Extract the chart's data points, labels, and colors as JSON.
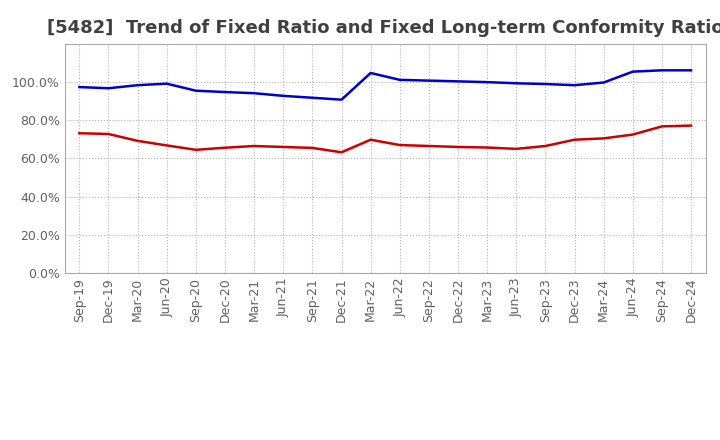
{
  "title": "[5482]  Trend of Fixed Ratio and Fixed Long-term Conformity Ratio",
  "title_color": "#404040",
  "background_color": "#ffffff",
  "plot_background_color": "#ffffff",
  "grid_color": "#aaaaaa",
  "ylim": [
    0.0,
    1.2
  ],
  "x_labels": [
    "Sep-19",
    "Dec-19",
    "Mar-20",
    "Jun-20",
    "Sep-20",
    "Dec-20",
    "Mar-21",
    "Jun-21",
    "Sep-21",
    "Dec-21",
    "Mar-22",
    "Jun-22",
    "Sep-22",
    "Dec-22",
    "Mar-23",
    "Jun-23",
    "Sep-23",
    "Dec-23",
    "Mar-24",
    "Jun-24",
    "Sep-24",
    "Dec-24"
  ],
  "fixed_ratio": [
    0.974,
    0.968,
    0.984,
    0.992,
    0.955,
    0.948,
    0.942,
    0.928,
    0.918,
    0.908,
    1.048,
    1.012,
    1.008,
    1.004,
    1.0,
    0.994,
    0.99,
    0.984,
    0.998,
    1.055,
    1.062,
    1.062
  ],
  "fixed_lt_ratio": [
    0.732,
    0.728,
    0.692,
    0.668,
    0.645,
    0.656,
    0.665,
    0.66,
    0.655,
    0.632,
    0.698,
    0.67,
    0.665,
    0.66,
    0.657,
    0.65,
    0.665,
    0.698,
    0.705,
    0.725,
    0.768,
    0.772
  ],
  "fixed_ratio_color": "#0000cc",
  "fixed_lt_ratio_color": "#cc0000",
  "line_width": 1.8,
  "legend_fontsize": 10,
  "title_fontsize": 13,
  "tick_fontsize": 9
}
